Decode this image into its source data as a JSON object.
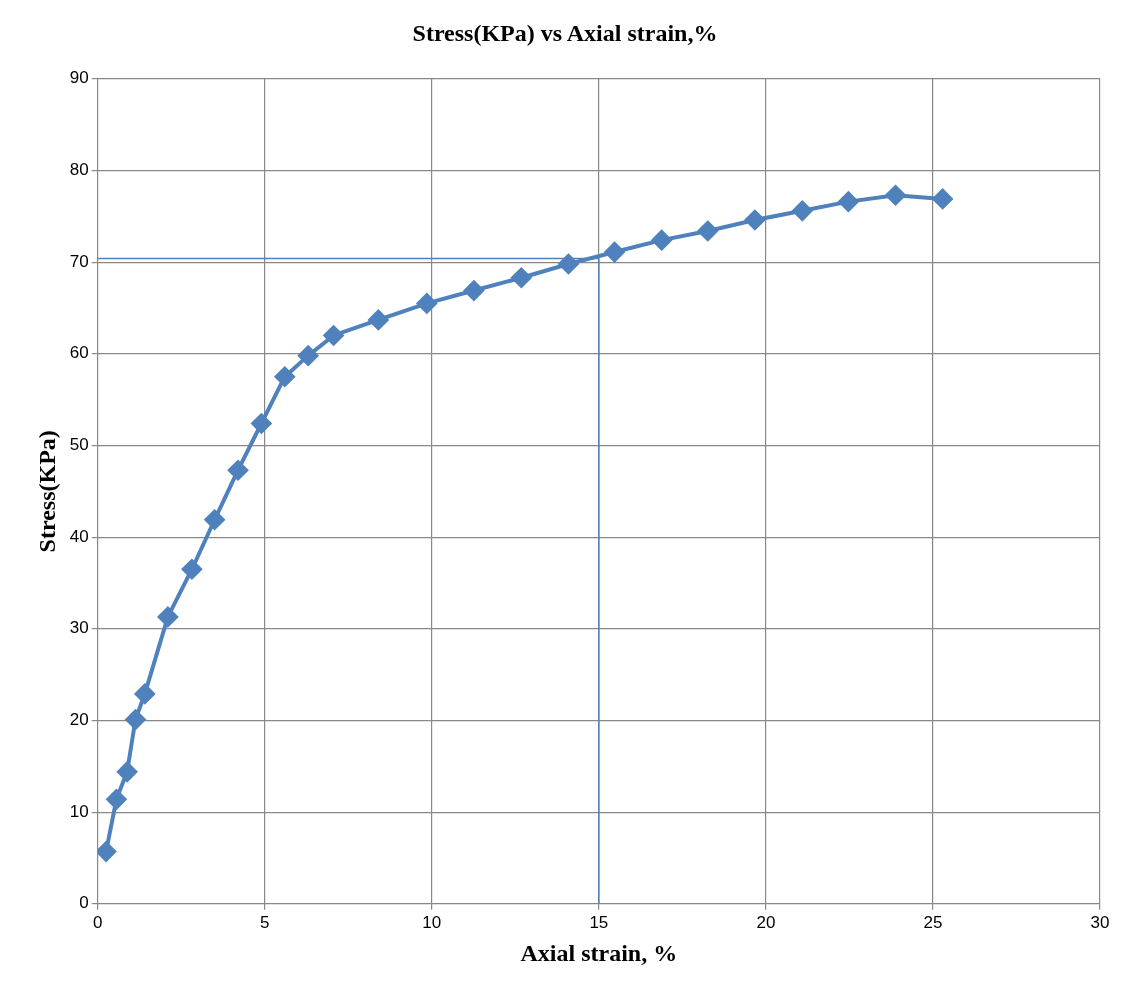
{
  "chart_data": {
    "type": "line",
    "title": "Stress(KPa) vs Axial strain,%",
    "xlabel": "Axial strain, %",
    "ylabel": "Stress(KPa)",
    "x": [
      0.25,
      0.56,
      0.88,
      1.13,
      1.41,
      2.1,
      2.82,
      3.5,
      4.2,
      4.9,
      5.6,
      6.3,
      7.06,
      8.4,
      9.85,
      11.26,
      12.68,
      14.09,
      15.47,
      16.88,
      18.26,
      19.67,
      21.09,
      22.47,
      23.88,
      25.29
    ],
    "series": [
      {
        "color": "#4f81bd",
        "values": [
          5.7,
          11.4,
          14.4,
          20.1,
          22.9,
          31.3,
          36.5,
          41.9,
          47.3,
          52.4,
          57.5,
          59.8,
          62,
          63.7,
          65.5,
          66.9,
          68.3,
          69.8,
          71.1,
          72.4,
          73.4,
          74.6,
          75.6,
          76.6,
          77.3,
          76.9
        ]
      }
    ],
    "xlim": [
      0,
      30
    ],
    "xticks": [
      0,
      5,
      10,
      15,
      20,
      25,
      30
    ],
    "ylim": [
      0,
      90
    ],
    "yticks": [
      0,
      10,
      20,
      30,
      40,
      50,
      60,
      70,
      80,
      90
    ],
    "ref_lines": [
      {
        "axis": "y",
        "value": 70.4,
        "color": "#4f81bd"
      },
      {
        "axis": "x",
        "value": 15,
        "color": "#4f81bd"
      }
    ],
    "grid": true,
    "legend": false,
    "marker": "diamond",
    "line_style": "solid"
  }
}
